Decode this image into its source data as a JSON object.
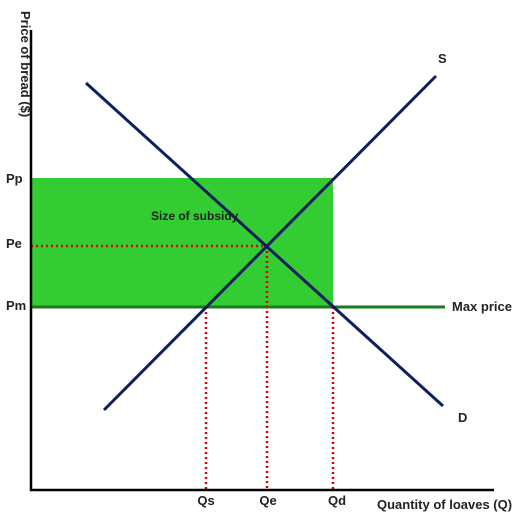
{
  "diagram": {
    "y_axis_label": "Price of bread ($)",
    "x_axis_label": "Quantity of loaves (Q)",
    "price_labels": {
      "pp": "Pp",
      "pe": "Pe",
      "pm": "Pm"
    },
    "quantity_labels": {
      "qs": "Qs",
      "qe": "Qe",
      "qd": "Qd"
    },
    "curve_labels": {
      "supply": "S",
      "demand": "D"
    },
    "max_price_label": "Max price",
    "subsidy_label": "Size of subsidy",
    "colors": {
      "curve": "#0d1f5c",
      "subsidy_fill": "#33cc33",
      "max_price_line": "#1f7a1f",
      "guide_dots": "#e00000",
      "axis": "#000000"
    }
  }
}
